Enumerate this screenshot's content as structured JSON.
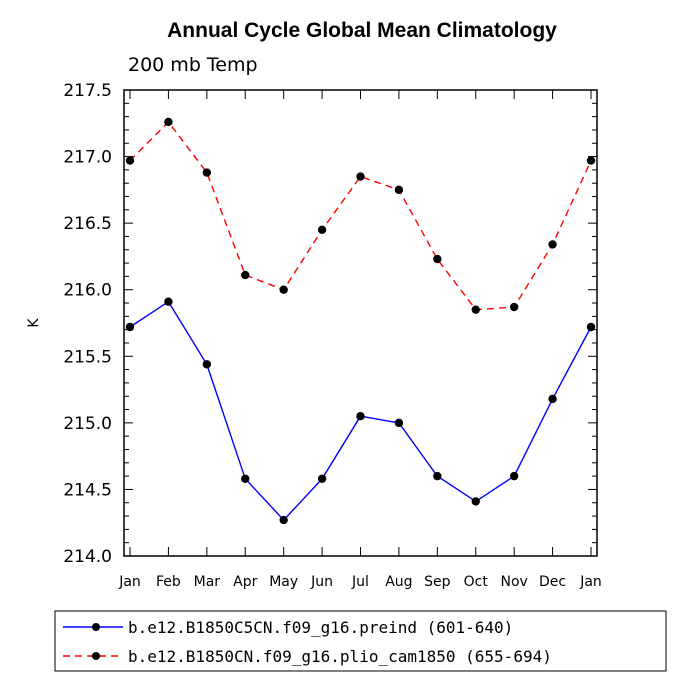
{
  "chart_data": {
    "type": "line",
    "title": "Annual Cycle Global Mean Climatology",
    "subtitle": "200 mb Temp",
    "xlabel": "",
    "ylabel": "K",
    "categories": [
      "Jan",
      "Feb",
      "Mar",
      "Apr",
      "May",
      "Jun",
      "Jul",
      "Aug",
      "Sep",
      "Oct",
      "Nov",
      "Dec",
      "Jan"
    ],
    "ylim": [
      214.0,
      217.5
    ],
    "yticks": [
      "214.0",
      "214.5",
      "215.0",
      "215.5",
      "216.0",
      "216.5",
      "217.0",
      "217.5"
    ],
    "grid": false,
    "legend_position": "bottom",
    "series": [
      {
        "name": "b.e12.B1850C5CN.f09_g16.preind (601-640)",
        "color": "#0000ff",
        "dash": "solid",
        "values": [
          215.72,
          215.91,
          215.44,
          214.58,
          214.27,
          214.58,
          215.05,
          215.0,
          214.6,
          214.41,
          214.6,
          215.18,
          215.72
        ]
      },
      {
        "name": "b.e12.B1850CN.f09_g16.plio_cam1850 (655-694)",
        "color": "#ff0000",
        "dash": "dashed",
        "values": [
          216.97,
          217.26,
          216.88,
          216.11,
          216.0,
          216.45,
          216.85,
          216.75,
          216.23,
          215.85,
          215.87,
          216.34,
          216.97
        ]
      }
    ]
  }
}
